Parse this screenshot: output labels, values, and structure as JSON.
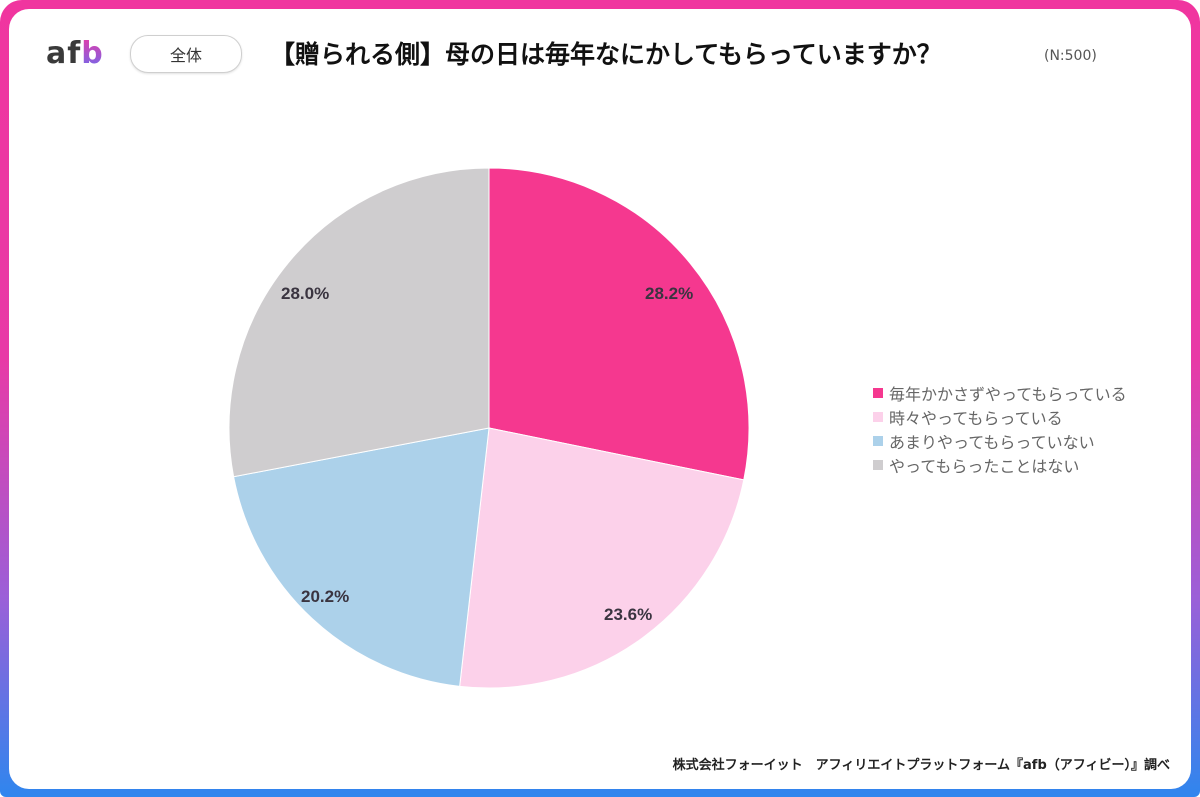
{
  "header": {
    "logo_text": "af",
    "logo_accent": "b",
    "segment_badge": "全体",
    "title": "【贈られる側】母の日は毎年なにかしてもらっていますか？",
    "sample_size": "(N:500)"
  },
  "legend": [
    {
      "label": "毎年かかさずやってもらっている",
      "color": "#f5388f"
    },
    {
      "label": "時々やってもらっている",
      "color": "#fcd1ea"
    },
    {
      "label": "あまりやってもらっていない",
      "color": "#acd1ea"
    },
    {
      "label": "やってもらったことはない",
      "color": "#cfcdcf"
    }
  ],
  "labels": {
    "s0": "28.2%",
    "s1": "23.6%",
    "s2": "20.2%",
    "s3": "28.0%"
  },
  "footer": "株式会社フォーイット　アフィリエイトプラットフォーム『afb（アフィビー）』調べ",
  "chart_data": {
    "type": "pie",
    "title": "【贈られる側】母の日は毎年なにかしてもらっていますか？",
    "subtitle": "(N:500)",
    "segment": "全体",
    "categories": [
      "毎年かかさずやってもらっている",
      "時々やってもらっている",
      "あまりやってもらっていない",
      "やってもらったことはない"
    ],
    "values": [
      28.2,
      23.6,
      20.2,
      28.0
    ],
    "unit": "%",
    "colors": [
      "#f5388f",
      "#fcd1ea",
      "#acd1ea",
      "#cfcdcf"
    ],
    "start_angle": "12 o'clock, clockwise",
    "legend_position": "right"
  }
}
